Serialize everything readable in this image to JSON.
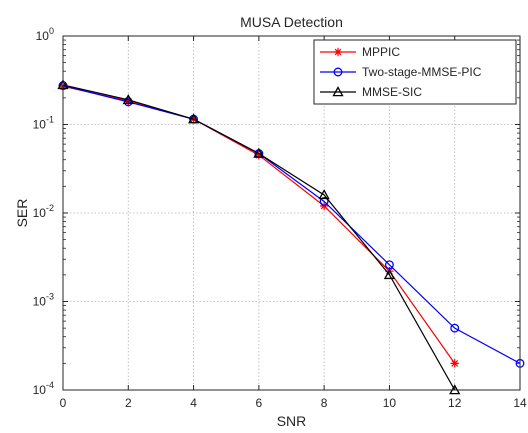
{
  "chart_data": {
    "type": "line",
    "title": "MUSA Detection",
    "xlabel": "SNR",
    "ylabel": "SER",
    "xlim": [
      0,
      14
    ],
    "ylim": [
      0.0001,
      1
    ],
    "yscale": "log",
    "grid": true,
    "legend_position": "top-right",
    "x_ticks": [
      "0",
      "2",
      "4",
      "6",
      "8",
      "10",
      "12",
      "14"
    ],
    "y_ticks": [
      {
        "base": "10",
        "exp": "-4"
      },
      {
        "base": "10",
        "exp": "-3"
      },
      {
        "base": "10",
        "exp": "-2"
      },
      {
        "base": "10",
        "exp": "-1"
      },
      {
        "base": "10",
        "exp": "0"
      }
    ],
    "series": [
      {
        "name": "MPPIC",
        "color": "#ff0000",
        "marker": "star",
        "x": [
          0,
          2,
          4,
          6,
          8,
          10,
          12
        ],
        "y": [
          0.27,
          0.185,
          0.115,
          0.045,
          0.012,
          0.0022,
          0.0002
        ]
      },
      {
        "name": "Two-stage-MMSE-PIC",
        "color": "#0000ff",
        "marker": "circle",
        "x": [
          0,
          2,
          4,
          6,
          8,
          10,
          12,
          14
        ],
        "y": [
          0.275,
          0.18,
          0.115,
          0.047,
          0.0135,
          0.0026,
          0.0005,
          0.0002
        ]
      },
      {
        "name": "MMSE-SIC",
        "color": "#000000",
        "marker": "triangle",
        "x": [
          0,
          2,
          4,
          6,
          8,
          10,
          12
        ],
        "y": [
          0.28,
          0.19,
          0.115,
          0.047,
          0.016,
          0.002,
          0.0001
        ]
      }
    ]
  }
}
